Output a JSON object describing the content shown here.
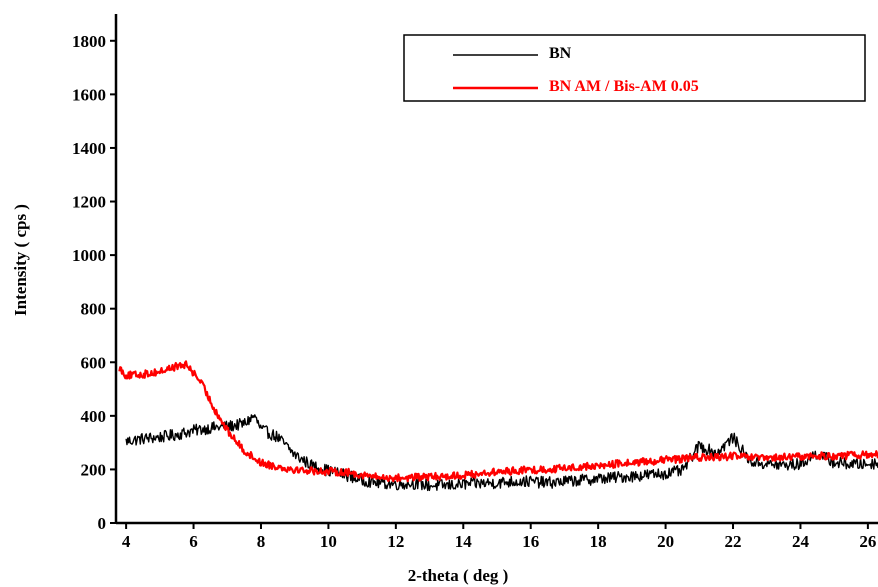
{
  "chart_data": {
    "type": "line",
    "title": "",
    "xlabel": "2-theta ( deg )",
    "ylabel": "Intensity ( cps )",
    "xlim": [
      3.7,
      26.3
    ],
    "ylim": [
      0,
      1900
    ],
    "xticks": [
      4,
      6,
      8,
      10,
      12,
      14,
      16,
      18,
      20,
      22,
      24,
      26
    ],
    "yticks": [
      0,
      200,
      400,
      600,
      800,
      1000,
      1200,
      1400,
      1600,
      1800
    ],
    "grid": false,
    "legend_position": "top-right",
    "series": [
      {
        "name": "BN",
        "color": "#000000",
        "x": [
          4.0,
          4.5,
          5.0,
          5.5,
          6.0,
          6.5,
          7.0,
          7.5,
          7.8,
          8.0,
          8.5,
          9.0,
          9.5,
          10.0,
          10.5,
          11.0,
          11.5,
          12.0,
          12.5,
          13.0,
          13.5,
          14.0,
          14.5,
          15.0,
          15.5,
          16.0,
          16.5,
          17.0,
          17.5,
          18.0,
          18.5,
          19.0,
          19.5,
          20.0,
          20.5,
          21.0,
          21.5,
          22.0,
          22.5,
          23.0,
          23.5,
          24.0,
          24.5,
          25.0,
          25.5,
          26.0,
          26.3
        ],
        "y": [
          305,
          315,
          320,
          330,
          345,
          355,
          360,
          370,
          400,
          350,
          320,
          255,
          215,
          195,
          180,
          160,
          150,
          145,
          148,
          140,
          140,
          145,
          148,
          150,
          155,
          155,
          150,
          155,
          160,
          165,
          170,
          175,
          180,
          185,
          195,
          290,
          260,
          320,
          230,
          220,
          215,
          220,
          260,
          225,
          220,
          220,
          225
        ]
      },
      {
        "name": "BN AM / Bis-AM 0.05",
        "color": "#ff0000",
        "x": [
          3.8,
          4.0,
          4.5,
          5.0,
          5.5,
          5.8,
          6.2,
          6.6,
          7.0,
          7.5,
          8.0,
          8.5,
          9.0,
          9.5,
          10.0,
          10.5,
          11.0,
          11.5,
          12.0,
          12.5,
          13.0,
          13.5,
          14.0,
          14.5,
          15.0,
          15.5,
          16.0,
          16.5,
          17.0,
          17.5,
          18.0,
          18.5,
          19.0,
          19.5,
          20.0,
          20.5,
          21.0,
          21.5,
          22.0,
          22.5,
          23.0,
          23.5,
          24.0,
          24.5,
          25.0,
          25.5,
          26.0,
          26.3
        ],
        "y": [
          580,
          550,
          555,
          565,
          585,
          590,
          530,
          430,
          345,
          270,
          225,
          210,
          200,
          195,
          192,
          190,
          180,
          170,
          168,
          170,
          172,
          175,
          178,
          185,
          190,
          195,
          198,
          200,
          205,
          210,
          212,
          220,
          225,
          230,
          235,
          240,
          245,
          245,
          250,
          245,
          240,
          245,
          248,
          250,
          250,
          252,
          255,
          255
        ]
      }
    ]
  }
}
